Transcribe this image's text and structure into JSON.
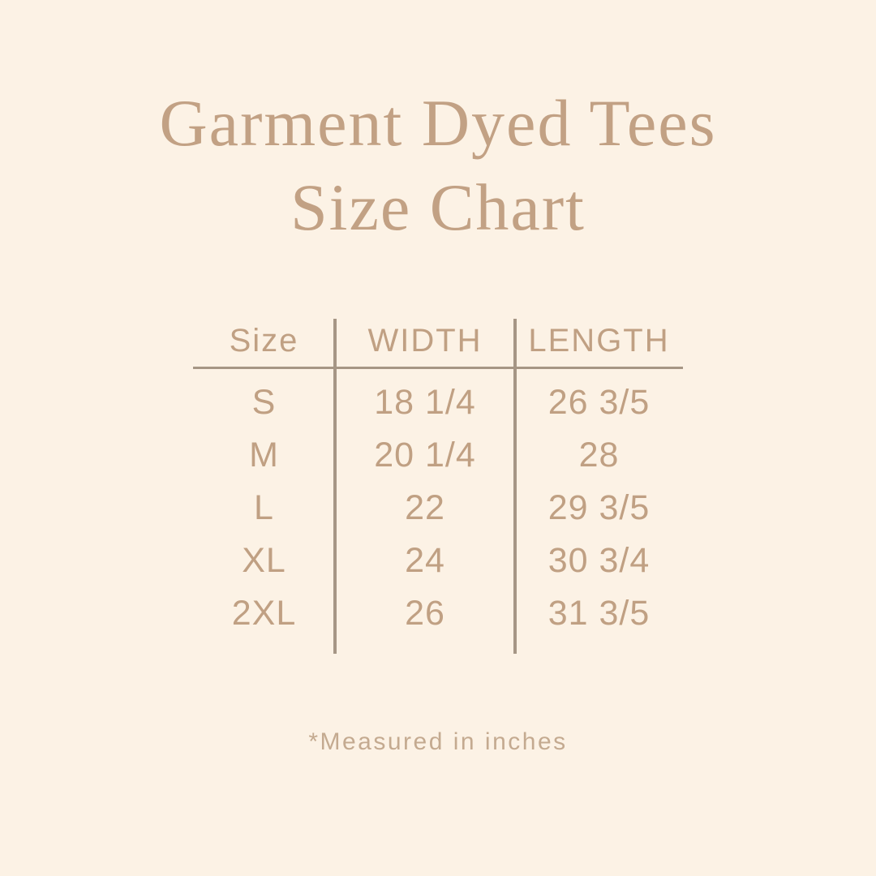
{
  "title": {
    "line1": "Garment Dyed Tees",
    "line2": "Size Chart"
  },
  "table": {
    "headers": [
      "Size",
      "WIDTH",
      "LENGTH"
    ],
    "rows": [
      {
        "size": "S",
        "width": "18 1/4",
        "length": "26 3/5"
      },
      {
        "size": "M",
        "width": "20 1/4",
        "length": "28"
      },
      {
        "size": "L",
        "width": "22",
        "length": "29 3/5"
      },
      {
        "size": "XL",
        "width": "24",
        "length": "30 3/4"
      },
      {
        "size": "2XL",
        "width": "26",
        "length": "31 3/5"
      }
    ]
  },
  "footer": {
    "note": "*Measured in inches"
  },
  "chart_data": {
    "type": "table",
    "title": "Garment Dyed Tees Size Chart",
    "columns": [
      "Size",
      "WIDTH",
      "LENGTH"
    ],
    "rows": [
      [
        "S",
        "18 1/4",
        "26 3/5"
      ],
      [
        "M",
        "20 1/4",
        "28"
      ],
      [
        "L",
        "22",
        "29 3/5"
      ],
      [
        "XL",
        "24",
        "30 3/4"
      ],
      [
        "2XL",
        "26",
        "31 3/5"
      ]
    ],
    "note": "*Measured in inches",
    "units": "inches"
  },
  "colors": {
    "background": "#fcf2e5",
    "title_text": "#c2a184",
    "table_text": "#c0a083",
    "line": "#a69685",
    "note_text": "#c4aa90"
  }
}
